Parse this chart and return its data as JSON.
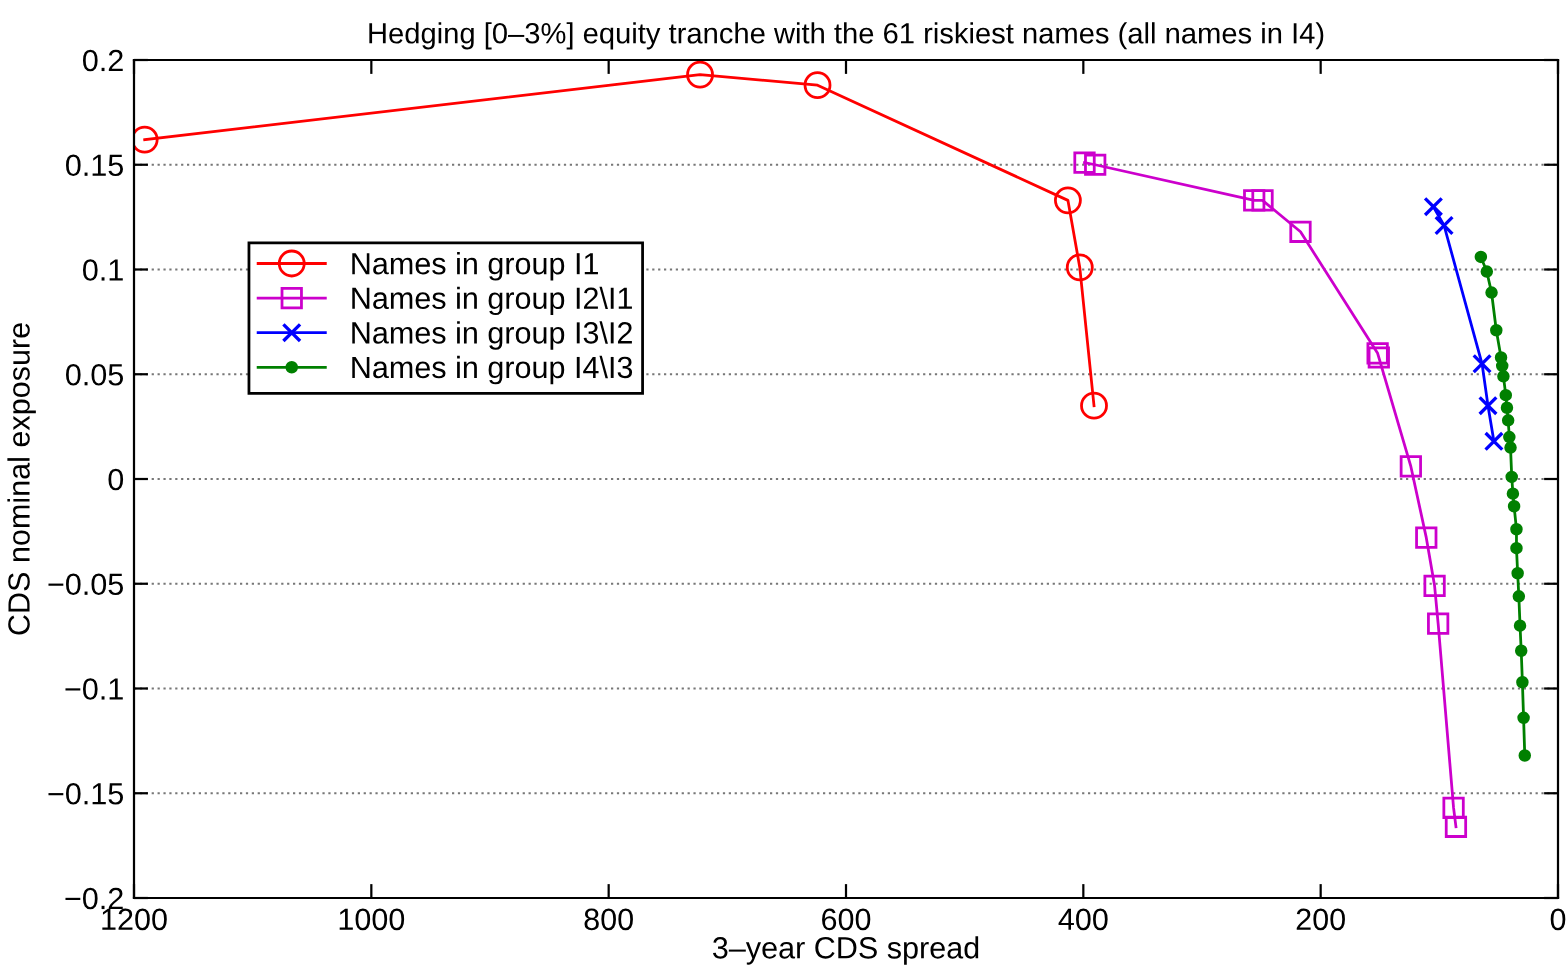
{
  "chart_data": {
    "type": "line",
    "title": "Hedging [0–3%] equity tranche with the 61 riskiest names (all names in I4)",
    "xlabel": "3–year CDS spread",
    "ylabel": "CDS nominal exposure",
    "xlim": [
      1200,
      0
    ],
    "xticks": [
      0,
      200,
      400,
      600,
      800,
      1000,
      1200
    ],
    "ylim": [
      -0.2,
      0.2
    ],
    "yticks": [
      {
        "value": -0.2,
        "label": "−0.2"
      },
      {
        "value": -0.15,
        "label": "−0.15"
      },
      {
        "value": -0.1,
        "label": "−0.1"
      },
      {
        "value": -0.05,
        "label": "−0.05"
      },
      0,
      0.05,
      0.1,
      0.15,
      0.2
    ],
    "grid": "y",
    "legend": "top left",
    "series": [
      {
        "name": "Names in group I1",
        "color": "#ff0000",
        "marker": "circle",
        "x": [
          1191,
          723,
          624,
          413,
          403,
          391
        ],
        "values": [
          0.162,
          0.193,
          0.188,
          0.133,
          0.101,
          0.035
        ]
      },
      {
        "name": "Names in group I2\\I1",
        "color": "#cc00cc",
        "marker": "square",
        "x": [
          399,
          390,
          256,
          249,
          217,
          152,
          151,
          124,
          111,
          104,
          101,
          88,
          86
        ],
        "values": [
          0.151,
          0.15,
          0.133,
          0.133,
          0.118,
          0.06,
          0.058,
          0.006,
          -0.028,
          -0.051,
          -0.069,
          -0.157,
          -0.166
        ]
      },
      {
        "name": "Names in group I3\\I2",
        "color": "#0000ff",
        "marker": "cross",
        "x": [
          105,
          96,
          64,
          59,
          54
        ],
        "values": [
          0.13,
          0.121,
          0.055,
          0.035,
          0.018
        ]
      },
      {
        "name": "Names in group I4\\I3",
        "color": "#008000",
        "marker": "circle",
        "x": [
          65,
          60,
          56,
          52,
          48,
          47,
          46,
          44,
          43,
          42,
          41,
          40,
          39,
          38,
          37,
          35,
          35,
          34,
          33,
          32,
          31,
          30,
          29,
          28
        ],
        "values": [
          0.106,
          0.099,
          0.089,
          0.071,
          0.058,
          0.054,
          0.049,
          0.04,
          0.034,
          0.028,
          0.02,
          0.015,
          0.001,
          -0.007,
          -0.013,
          -0.024,
          -0.033,
          -0.045,
          -0.056,
          -0.07,
          -0.082,
          -0.097,
          -0.114,
          -0.132
        ]
      }
    ]
  }
}
